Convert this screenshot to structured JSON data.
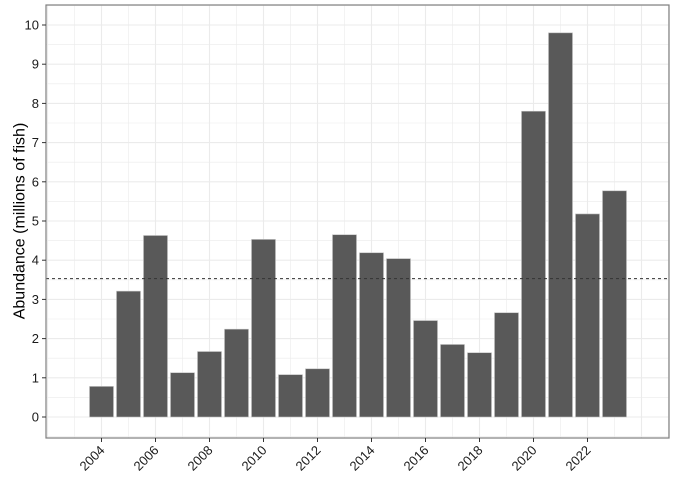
{
  "chart_data": {
    "type": "bar",
    "title": "",
    "xlabel": "",
    "ylabel": "Abundance (millions of fish)",
    "categories": [
      "2004",
      "2005",
      "2006",
      "2007",
      "2008",
      "2009",
      "2010",
      "2011",
      "2012",
      "2013",
      "2014",
      "2015",
      "2016",
      "2017",
      "2018",
      "2019",
      "2020",
      "2021",
      "2022",
      "2023"
    ],
    "values": [
      0.78,
      3.21,
      4.63,
      1.13,
      1.67,
      2.24,
      4.53,
      1.08,
      1.23,
      4.65,
      4.19,
      4.04,
      2.46,
      1.85,
      1.64,
      2.66,
      7.8,
      9.8,
      5.18,
      5.77
    ],
    "reference_line": {
      "value": 3.53,
      "style": "dashed",
      "color": "#333333"
    },
    "ylim": [
      -0.4,
      10.4
    ],
    "xlim": [
      2002,
      2025
    ],
    "yticks": [
      0,
      1,
      2,
      3,
      4,
      5,
      6,
      7,
      8,
      9,
      10
    ],
    "xticks": [
      "2004",
      "2006",
      "2008",
      "2010",
      "2012",
      "2014",
      "2016",
      "2018",
      "2020",
      "2022"
    ],
    "grid": true,
    "legend": null,
    "bar_color": "#595959",
    "bar_outline": "#bfbfbf",
    "grid_color": "#ebebeb",
    "panel_border_color": "#7f7f7f"
  }
}
